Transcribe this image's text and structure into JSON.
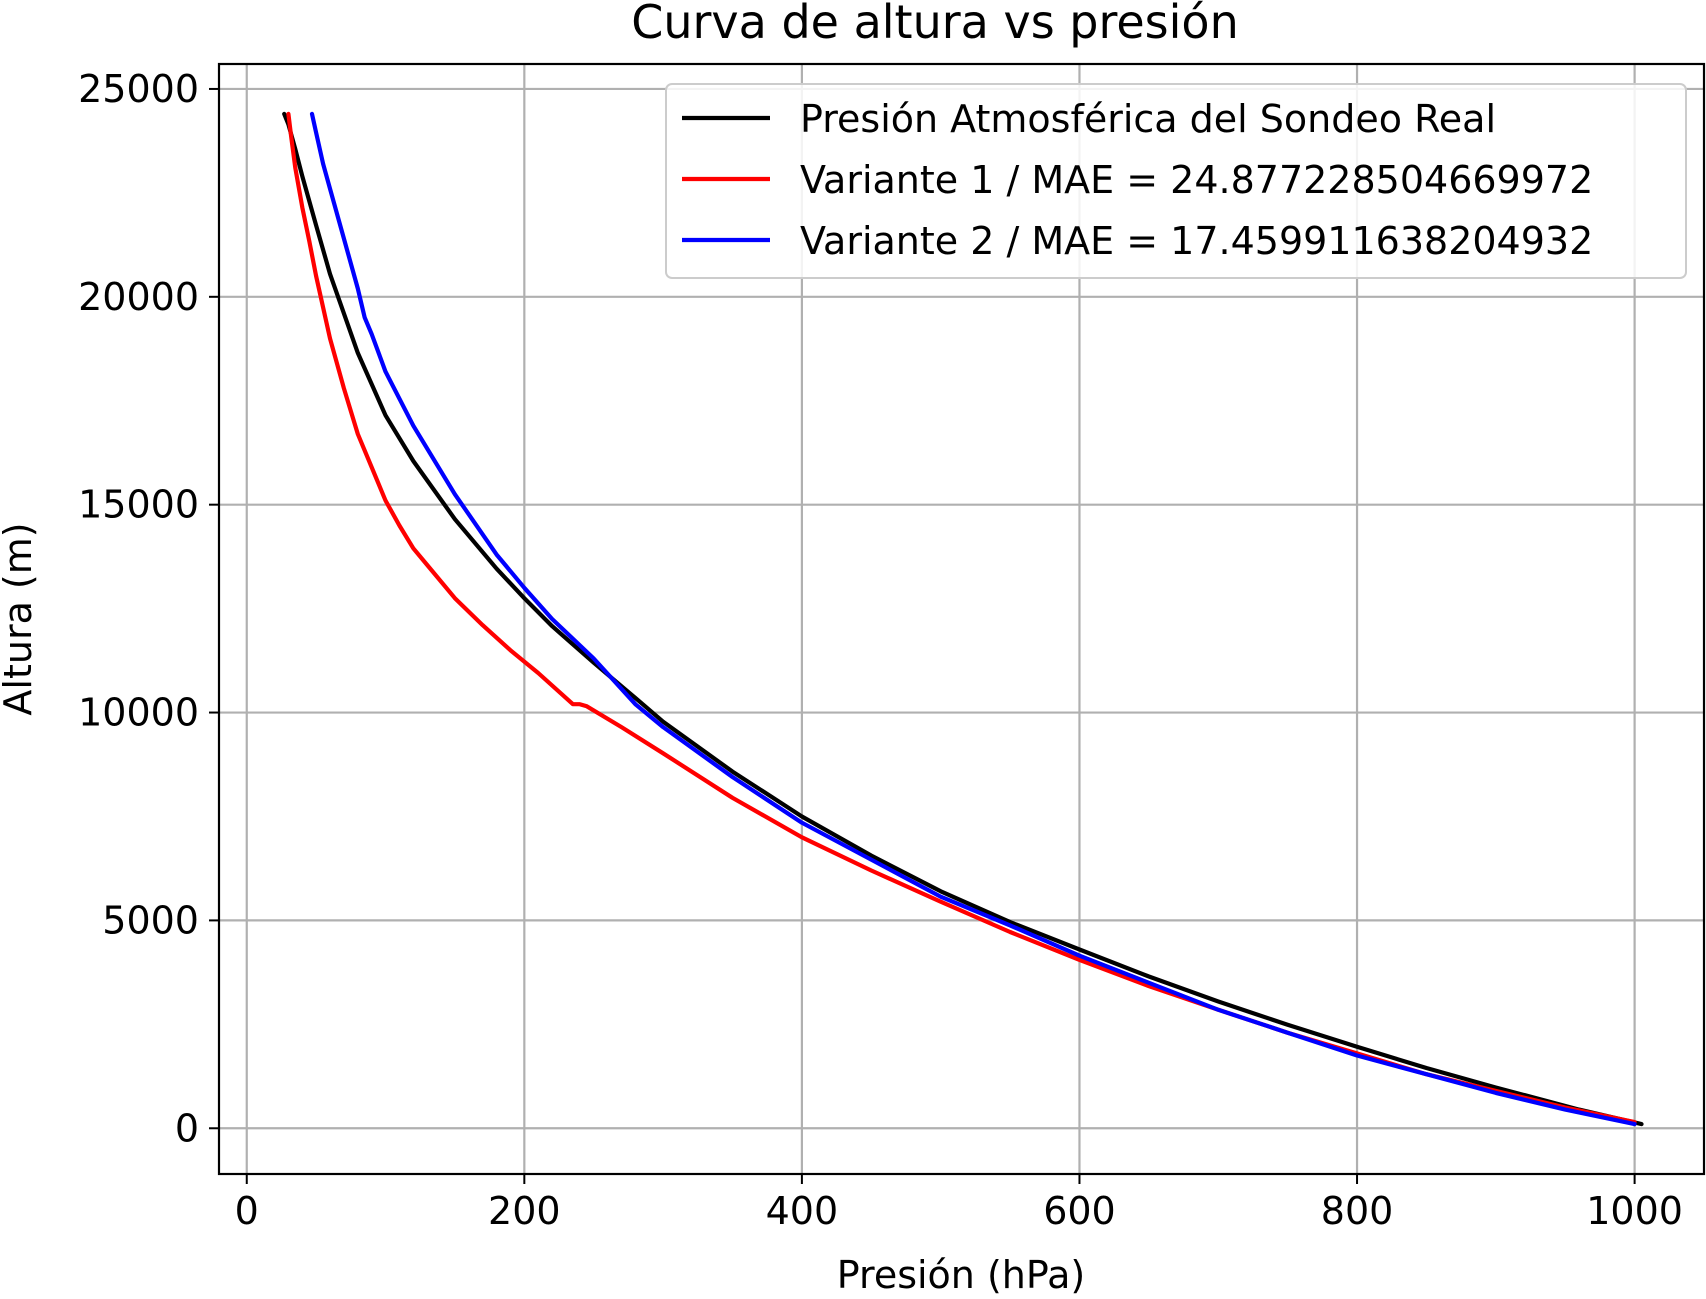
{
  "chart_data": {
    "type": "line",
    "title": "Curva de altura vs presión",
    "xlabel": "Presión (hPa)",
    "ylabel": "Altura (m)",
    "xlim": [
      -20,
      1050
    ],
    "ylim": [
      -1100,
      25600
    ],
    "xticks": [
      0,
      200,
      400,
      600,
      800,
      1000
    ],
    "yticks": [
      0,
      5000,
      10000,
      15000,
      20000,
      25000
    ],
    "xtick_labels": [
      "0",
      "200",
      "400",
      "600",
      "800",
      "1000"
    ],
    "ytick_labels": [
      "0",
      "5000",
      "10000",
      "15000",
      "20000",
      "25000"
    ],
    "grid": true,
    "legend_position": "top-right",
    "series": [
      {
        "name": "Presión Atmosférica del Sondeo Real",
        "color": "#000000",
        "x": [
          1005,
          960,
          900,
          850,
          800,
          750,
          700,
          650,
          600,
          550,
          500,
          450,
          400,
          350,
          300,
          280,
          250,
          220,
          200,
          180,
          150,
          120,
          100,
          80,
          60,
          50,
          40,
          35,
          30,
          27
        ],
        "y": [
          100,
          450,
          980,
          1450,
          1960,
          2490,
          3050,
          3650,
          4300,
          4960,
          5700,
          6560,
          7500,
          8580,
          9780,
          10350,
          11200,
          12080,
          12750,
          13460,
          14650,
          16050,
          17150,
          18650,
          20550,
          21720,
          22900,
          23550,
          24150,
          24400
        ]
      },
      {
        "name": "Variante 1 / MAE = 24.877228504669972",
        "color": "#ff0000",
        "x": [
          1000,
          950,
          900,
          850,
          800,
          750,
          700,
          650,
          600,
          550,
          500,
          450,
          400,
          350,
          300,
          270,
          245,
          240,
          235,
          210,
          190,
          170,
          150,
          130,
          120,
          110,
          100,
          90,
          80,
          70,
          60,
          50,
          45,
          40,
          35,
          32,
          30
        ],
        "y": [
          150,
          500,
          900,
          1300,
          1800,
          2300,
          2850,
          3420,
          4050,
          4720,
          5450,
          6200,
          7000,
          7950,
          9020,
          9650,
          10150,
          10200,
          10200,
          10950,
          11500,
          12100,
          12750,
          13550,
          13950,
          14500,
          15100,
          15900,
          16700,
          17800,
          19000,
          20500,
          21350,
          22150,
          23100,
          23850,
          24400
        ]
      },
      {
        "name": "Variante 2 / MAE = 17.459911638204932",
        "color": "#0000ff",
        "x": [
          1000,
          950,
          900,
          850,
          800,
          750,
          700,
          650,
          600,
          550,
          500,
          450,
          400,
          350,
          300,
          280,
          250,
          220,
          200,
          180,
          150,
          120,
          100,
          90,
          85,
          80,
          70,
          60,
          55,
          50,
          47
        ],
        "y": [
          100,
          450,
          850,
          1300,
          1750,
          2300,
          2850,
          3500,
          4150,
          4880,
          5570,
          6460,
          7350,
          8450,
          9650,
          10200,
          11300,
          12250,
          13000,
          13800,
          15250,
          16900,
          18200,
          19100,
          19500,
          20200,
          21400,
          22600,
          23200,
          23950,
          24400
        ]
      }
    ]
  }
}
